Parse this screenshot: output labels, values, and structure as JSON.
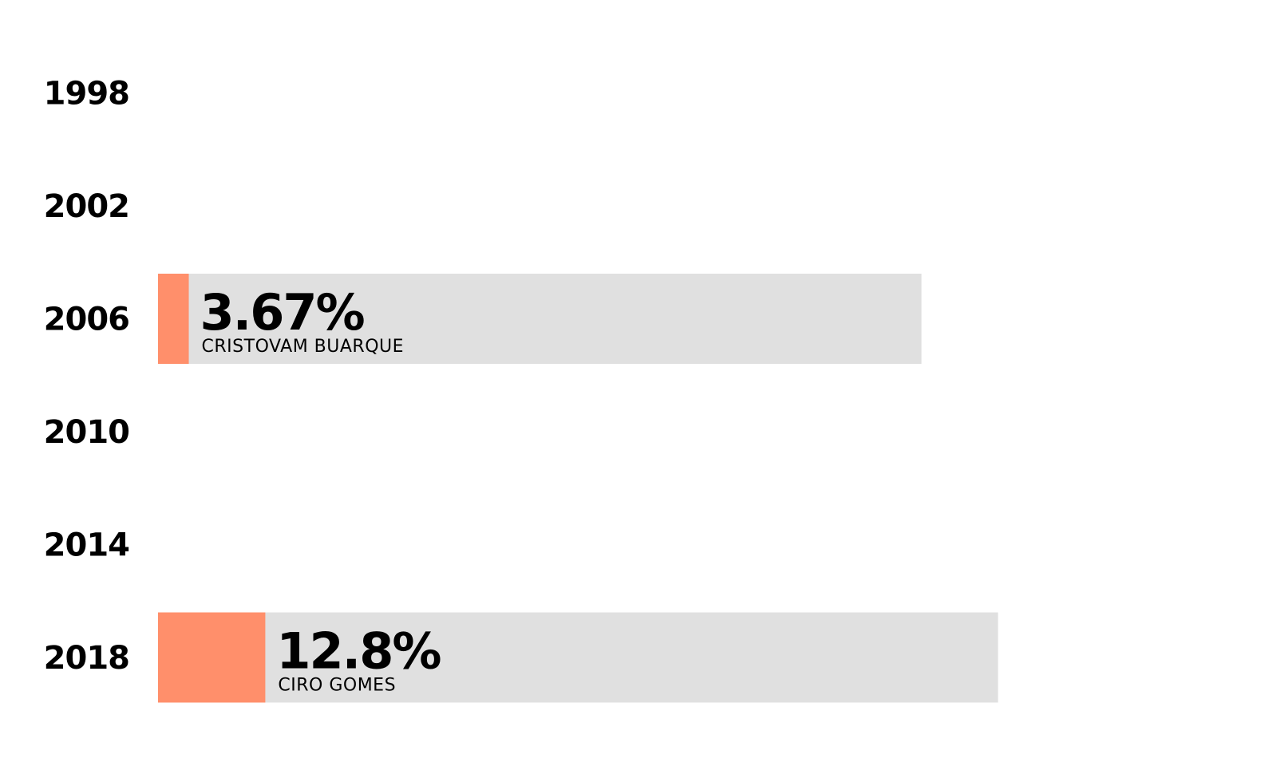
{
  "chart_data": {
    "type": "bar",
    "orientation": "horizontal",
    "categories": [
      "1998",
      "2002",
      "2006",
      "2010",
      "2014",
      "2018"
    ],
    "values": [
      null,
      null,
      3.67,
      null,
      null,
      12.8
    ],
    "value_labels": [
      "",
      "",
      "3.67%",
      "",
      "",
      "12.8%"
    ],
    "candidates": [
      "",
      "",
      "CRISTOVAM BUARQUE",
      "",
      "",
      "CIRO GOMES"
    ],
    "xlim": [
      0,
      100
    ],
    "grid": false,
    "legend": "none"
  },
  "colors": {
    "bar_fill": "#FF8F6B",
    "panel_background": "#E0E0E0",
    "text": "#000000",
    "background": "#FFFFFF"
  }
}
